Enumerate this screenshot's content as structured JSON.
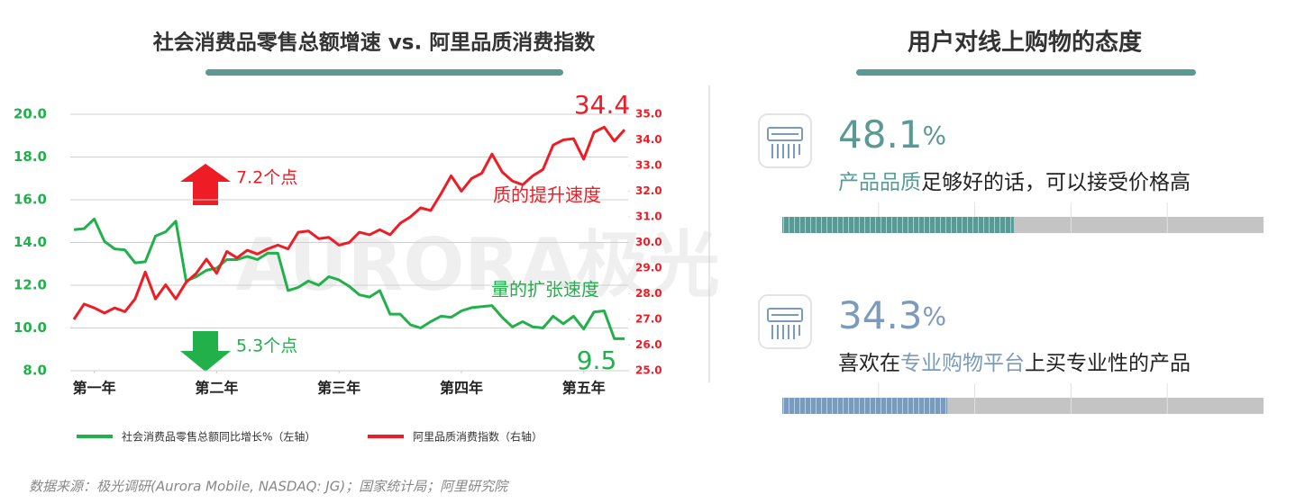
{
  "chart_data": {
    "type": "line",
    "title": "社会消费品零售总额增速 vs. 阿里品质消费指数",
    "x": [
      0,
      1,
      2,
      3,
      4,
      5,
      6,
      7,
      8,
      9,
      10,
      11,
      12,
      13,
      14,
      15,
      16,
      17,
      18,
      19,
      20,
      21,
      22,
      23,
      24,
      25,
      26,
      27,
      28,
      29,
      30,
      31,
      32,
      33,
      34,
      35,
      36,
      37,
      38,
      39,
      40,
      41,
      42,
      43,
      44,
      45,
      46,
      47,
      48,
      49,
      50,
      51,
      52,
      53,
      54
    ],
    "xlim": [
      0,
      54
    ],
    "xticks": [
      {
        "value": 2,
        "label": "第一年"
      },
      {
        "value": 14,
        "label": "第二年"
      },
      {
        "value": 26,
        "label": "第三年"
      },
      {
        "value": 38,
        "label": "第四年"
      },
      {
        "value": 50,
        "label": "第五年"
      }
    ],
    "ylim": [
      8,
      20
    ],
    "yticks": [
      {
        "value": 8,
        "label": "8.0"
      },
      {
        "value": 10,
        "label": "10.0"
      },
      {
        "value": 12,
        "label": "12.0"
      },
      {
        "value": 14,
        "label": "14.0"
      },
      {
        "value": 16,
        "label": "16.0"
      },
      {
        "value": 18,
        "label": "18.0"
      },
      {
        "value": 20,
        "label": "20.0"
      }
    ],
    "y2lim": [
      25,
      35
    ],
    "y2ticks": [
      {
        "value": 25,
        "label": "25.0"
      },
      {
        "value": 26,
        "label": "26.0"
      },
      {
        "value": 27,
        "label": "27.0"
      },
      {
        "value": 28,
        "label": "28.0"
      },
      {
        "value": 29,
        "label": "29.0"
      },
      {
        "value": 30,
        "label": "30.0"
      },
      {
        "value": 31,
        "label": "31.0"
      },
      {
        "value": 32,
        "label": "32.0"
      },
      {
        "value": 33,
        "label": "33.0"
      },
      {
        "value": 34,
        "label": "34.0"
      },
      {
        "value": 35,
        "label": "35.0"
      }
    ],
    "grid": true,
    "series": [
      {
        "name": "社会消费品零售总额同比增长%（左轴）",
        "color": "#22b04b",
        "values": [
          14.6,
          14.65,
          15.1,
          14.05,
          13.7,
          13.65,
          13.05,
          13.1,
          14.3,
          14.5,
          15.0,
          12.2,
          12.4,
          12.7,
          12.8,
          13.2,
          13.2,
          13.35,
          13.2,
          13.5,
          13.5,
          11.75,
          11.9,
          12.2,
          12.0,
          12.4,
          12.25,
          11.95,
          11.55,
          11.45,
          11.75,
          10.65,
          10.65,
          10.15,
          10.0,
          10.3,
          10.55,
          10.5,
          10.8,
          10.95,
          11.0,
          11.05,
          10.5,
          10.05,
          10.3,
          10.05,
          10.0,
          10.55,
          10.2,
          10.55,
          9.95,
          10.75,
          10.8,
          9.5,
          9.5
        ]
      },
      {
        "name": "阿里品质消费指数（右轴）",
        "color": "#ee1c25",
        "axis": "y2",
        "values": [
          27.0,
          27.6,
          27.45,
          27.25,
          27.45,
          27.3,
          27.8,
          28.85,
          27.8,
          28.35,
          27.8,
          28.45,
          28.8,
          29.35,
          28.8,
          29.65,
          29.4,
          29.7,
          29.55,
          29.75,
          29.9,
          29.75,
          30.4,
          30.45,
          30.15,
          30.2,
          29.9,
          30.0,
          30.4,
          30.3,
          30.5,
          30.3,
          30.75,
          31.0,
          31.35,
          31.25,
          31.9,
          32.6,
          32.0,
          32.5,
          32.7,
          33.45,
          32.75,
          32.4,
          32.25,
          32.6,
          32.85,
          33.8,
          34.0,
          34.05,
          33.25,
          34.3,
          34.5,
          33.95,
          34.4
        ]
      }
    ],
    "annotations": [
      "34.4",
      "9.5",
      "7.2个点",
      "5.3个点",
      "质的提升速度",
      "量的扩张速度"
    ]
  },
  "panel": {
    "title": "用户对线上购物的态度",
    "items": [
      {
        "value": 48.1,
        "unit": "%",
        "prefix": "",
        "highlight": "产品品质",
        "suffix": "足够好的话，可以接受价格高",
        "color": "#5b9a94"
      },
      {
        "value": 34.3,
        "unit": "%",
        "prefix": "喜欢在",
        "highlight": "专业购物平台",
        "suffix": "上买专业性的产品",
        "color": "#7b9bbd"
      }
    ]
  },
  "watermark": "AURORA极光",
  "source": "数据来源：极光调研(Aurora Mobile, NASDAQ: JG)；国家统计局；阿里研究院"
}
